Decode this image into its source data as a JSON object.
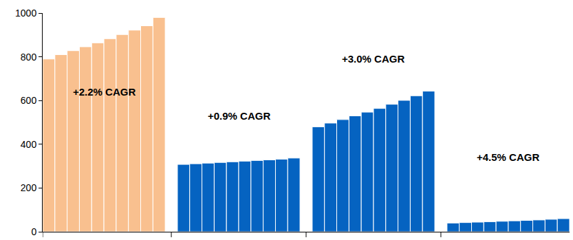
{
  "chart_data": {
    "type": "bar",
    "categories": [
      null,
      null,
      null,
      null,
      null,
      null,
      null,
      null,
      null,
      null,
      null,
      null,
      null,
      null,
      null,
      null,
      null,
      null,
      null,
      null,
      null,
      null,
      null,
      null,
      null,
      null,
      null,
      null,
      null,
      null,
      null,
      null,
      null,
      null,
      null,
      null,
      null,
      null,
      null,
      null,
      null,
      null,
      null
    ],
    "series": [
      {
        "color": "#F9C08F",
        "annotation": "+2.2% CAGR",
        "values": [
          790,
          810,
          828,
          846,
          864,
          883,
          902,
          922,
          942,
          980,
          null,
          null,
          null,
          null,
          null,
          null,
          null,
          null,
          null,
          null,
          null,
          null,
          null,
          null,
          null,
          null,
          null,
          null,
          null,
          null,
          null,
          null,
          null,
          null,
          null,
          null,
          null,
          null,
          null,
          null,
          null,
          null,
          null
        ]
      },
      {
        "color": "#0563C1",
        "annotation": "+0.9% CAGR",
        "values": [
          null,
          null,
          null,
          null,
          null,
          null,
          null,
          null,
          null,
          null,
          null,
          308,
          311,
          314,
          317,
          320,
          323,
          326,
          329,
          332,
          337,
          null,
          null,
          null,
          null,
          null,
          null,
          null,
          null,
          null,
          null,
          null,
          null,
          null,
          null,
          null,
          null,
          null,
          null,
          null,
          null,
          null,
          null
        ]
      },
      {
        "color": "#0563C1",
        "annotation": "+3.0% CAGR",
        "values": [
          null,
          null,
          null,
          null,
          null,
          null,
          null,
          null,
          null,
          null,
          null,
          null,
          null,
          null,
          null,
          null,
          null,
          null,
          null,
          null,
          null,
          null,
          480,
          497,
          513,
          530,
          547,
          564,
          583,
          601,
          622,
          643,
          null,
          null,
          null,
          null,
          null,
          null,
          null,
          null,
          null,
          null,
          null
        ]
      },
      {
        "color": "#0563C1",
        "annotation": "+4.5% CAGR",
        "values": [
          null,
          null,
          null,
          null,
          null,
          null,
          null,
          null,
          null,
          null,
          null,
          null,
          null,
          null,
          null,
          null,
          null,
          null,
          null,
          null,
          null,
          null,
          null,
          null,
          null,
          null,
          null,
          null,
          null,
          null,
          null,
          null,
          null,
          40,
          42,
          44,
          46,
          48,
          50,
          52,
          54,
          57,
          60
        ]
      }
    ],
    "ylim": [
      0,
      1000
    ],
    "yticks": [
      0,
      200,
      400,
      600,
      800,
      1000
    ],
    "grid": false,
    "tick_labels": "y"
  }
}
